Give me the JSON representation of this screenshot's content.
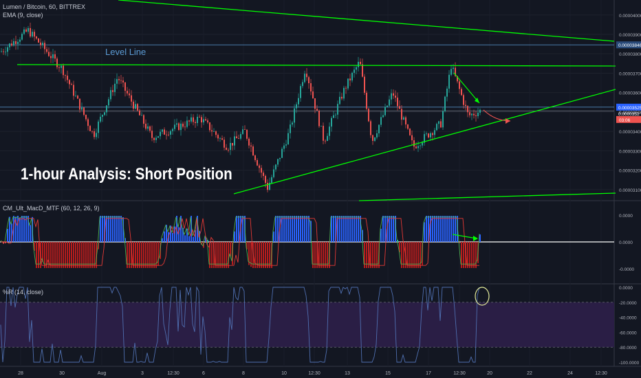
{
  "header": {
    "symbol_line": "Lumen / Bitcoin, 60, BITTREX",
    "ema_line": "EMA (9, close)"
  },
  "annotations": {
    "level_line": "Level Line",
    "headline": "1-hour Analysis: Short Position"
  },
  "indicators": {
    "macd_label": "CM_Ult_MacD_MTF (60, 12, 26, 9)",
    "wr_label": "%R (14, close)"
  },
  "colors": {
    "background": "#131722",
    "bull": "#26a69a",
    "bear": "#ef5350",
    "trendline": "#00ff00",
    "level": "#5b9bd5",
    "wr_line": "#4f6fb0",
    "wr_band": "#2a1e45",
    "price_tag": "#2962ff",
    "countdown_tag": "#ef5350"
  },
  "chart_data": [
    {
      "type": "candlestick",
      "title": "Lumen / Bitcoin, 60, BITTREX",
      "ylim": [
        3.05e-05,
        4.07e-05
      ],
      "y_ticks": [
        "0.00003100",
        "0.00003200",
        "0.00003300",
        "0.00003400",
        "0.00003500",
        "0.00003600",
        "0.00003700",
        "0.00003800",
        "0.00003900",
        "0.00004000"
      ],
      "x_ticks": [
        "28",
        "30",
        "Aug",
        "3",
        "12:30",
        "6",
        "8",
        "10",
        "12:30",
        "13",
        "15",
        "17",
        "12:30",
        "20",
        "22",
        "24",
        "12:30"
      ],
      "price_levels": [
        "0.00003846",
        "0.00003525"
      ],
      "countdown": "03:06",
      "price_readout_partial": "0.0000352",
      "legend": "EMA (9, close)"
    },
    {
      "type": "line",
      "title": "CM_Ult_MacD_MTF (60, 12, 26, 9)",
      "ylim": [
        -3e-05,
        3e-05
      ],
      "y_ticks": [
        "0.0000",
        "0.0000",
        "-0.0000"
      ]
    },
    {
      "type": "line",
      "title": "%R (14, close)",
      "ylim": [
        -100,
        0
      ],
      "y_ticks": [
        "0.0000",
        "-20.0000",
        "-40.0000",
        "-60.0000",
        "-80.0000",
        "-100.0000"
      ],
      "bands": [
        -20,
        -80
      ]
    }
  ]
}
